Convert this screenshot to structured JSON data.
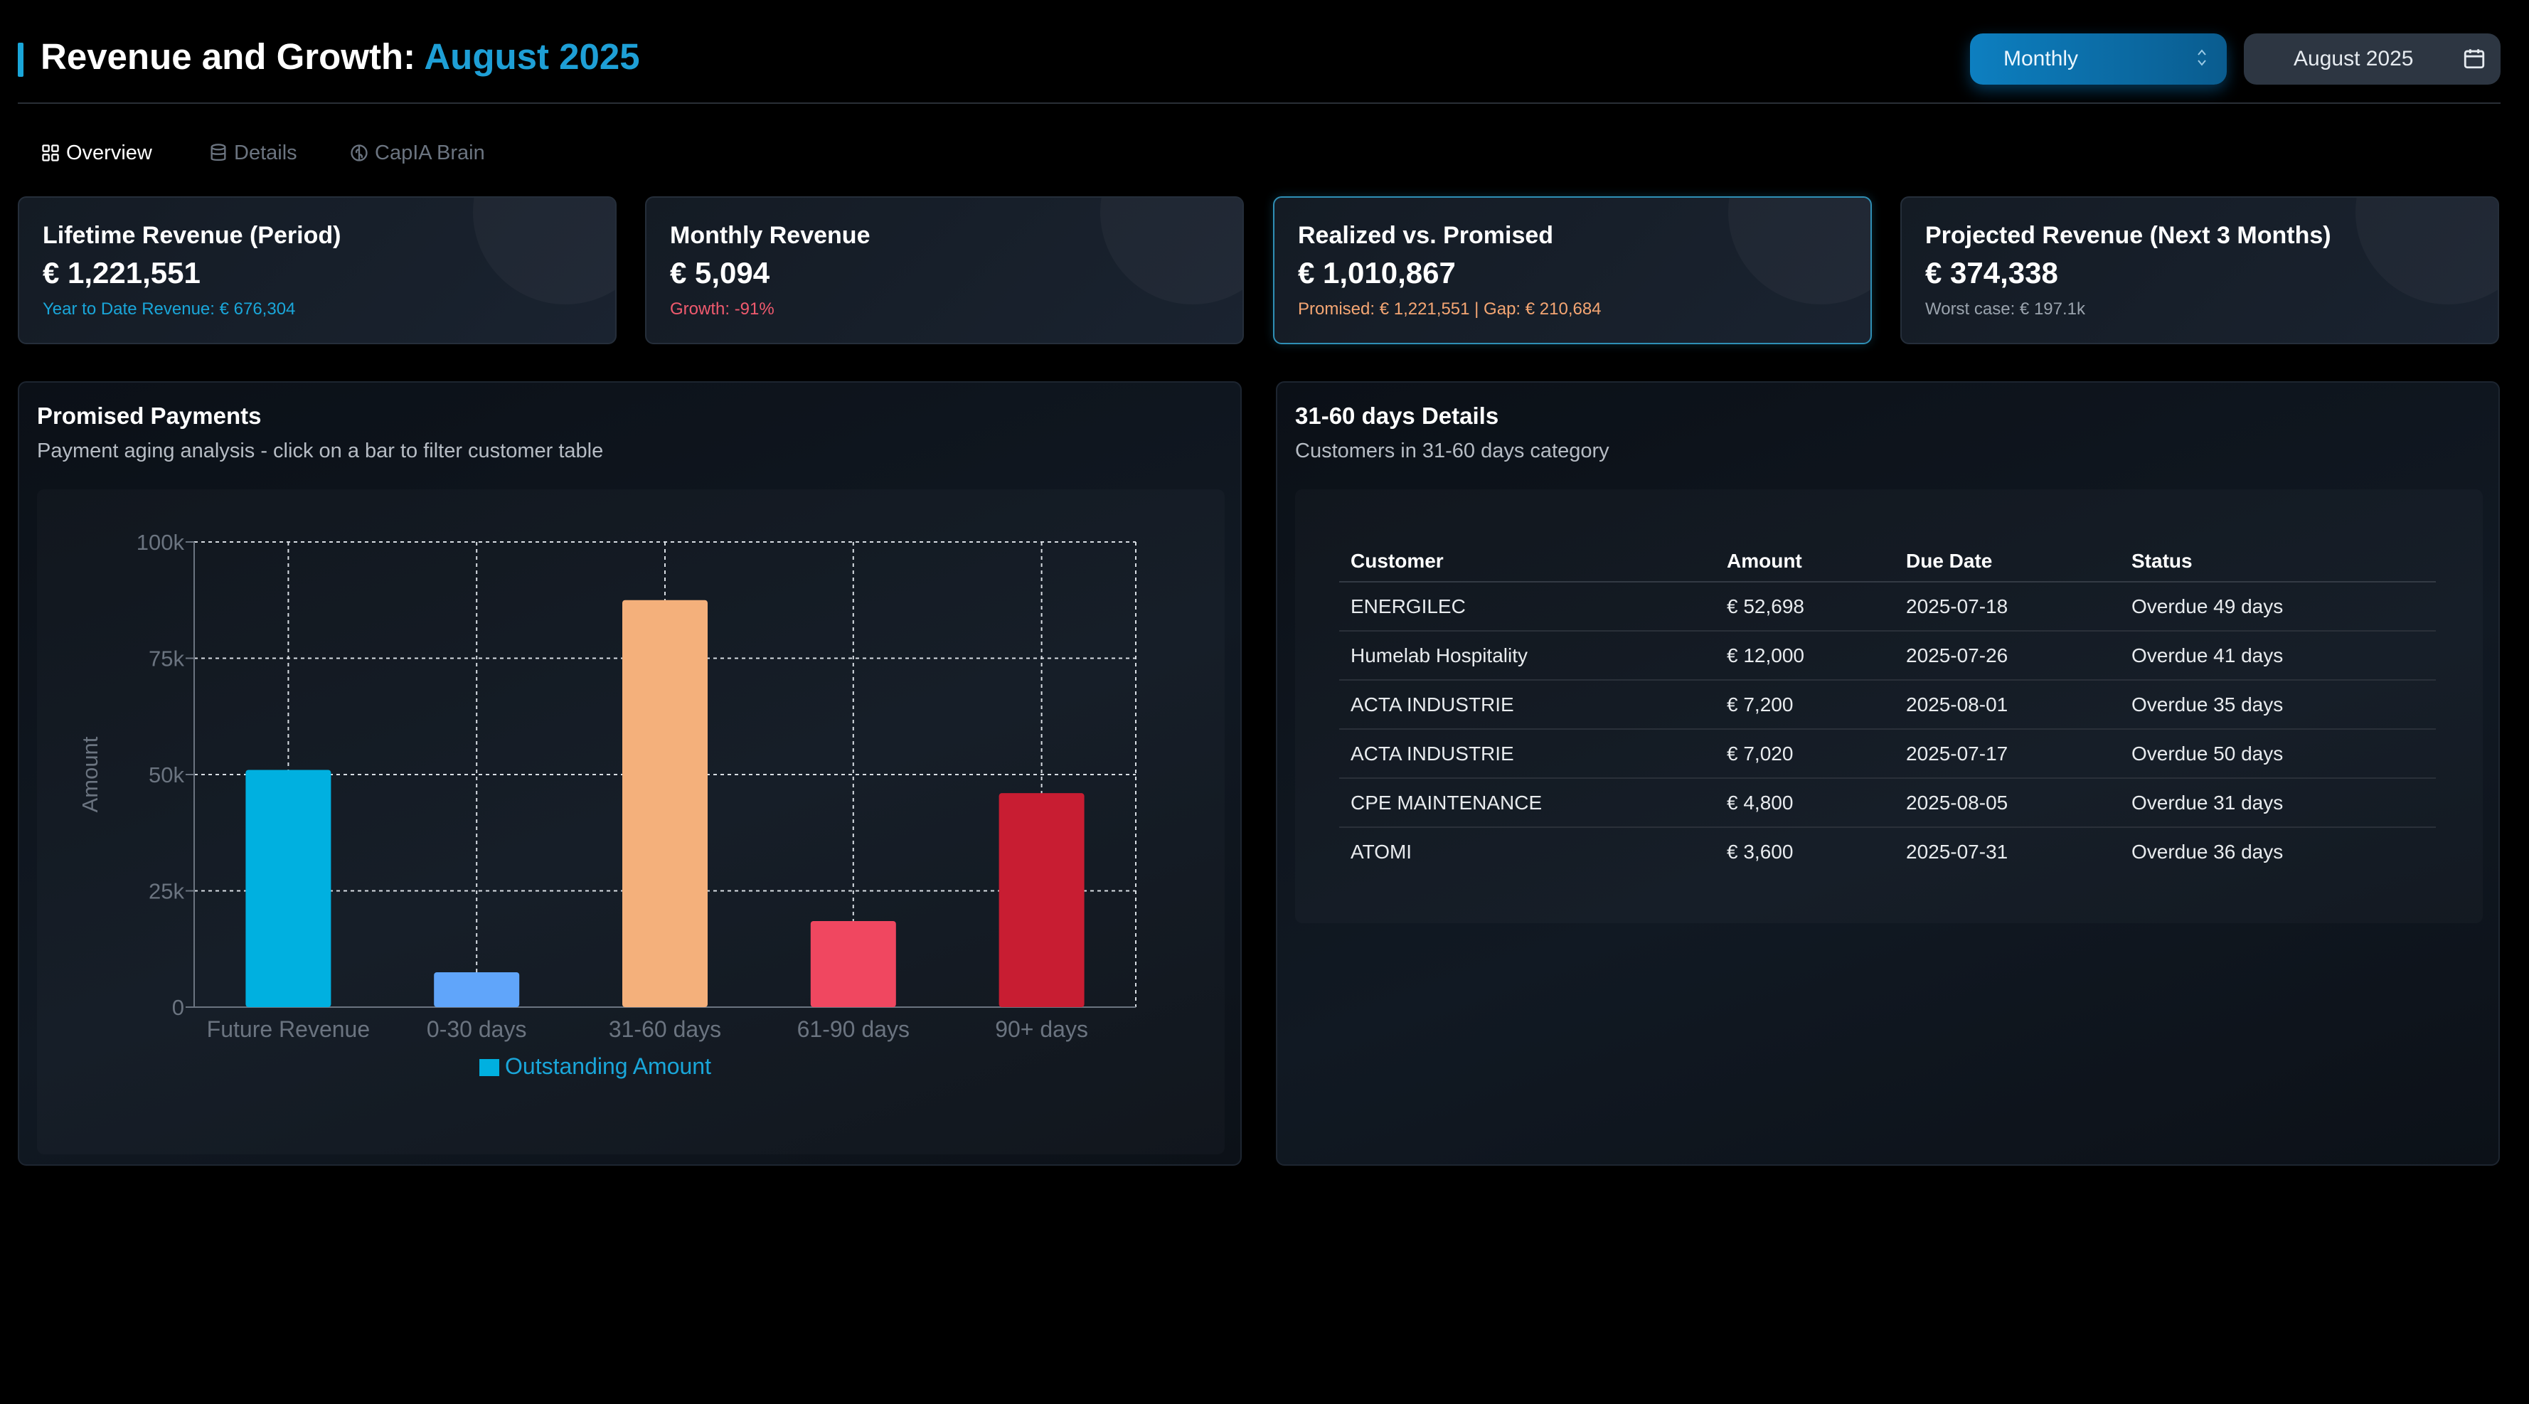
{
  "header": {
    "title_prefix": "Revenue and Growth:",
    "title_period": "August 2025",
    "period_select_value": "Monthly",
    "date_picker_value": "August 2025"
  },
  "tabs": [
    {
      "label": "Overview",
      "icon": "grid-icon",
      "active": true
    },
    {
      "label": "Details",
      "icon": "database-icon",
      "active": false
    },
    {
      "label": "CapIA Brain",
      "icon": "brain-icon",
      "active": false
    }
  ],
  "kpis": [
    {
      "title": "Lifetime Revenue (Period)",
      "value": "€ 1,221,551",
      "sub": "Year to Date Revenue: € 676,304",
      "sub_color": "#1aa6d9"
    },
    {
      "title": "Monthly Revenue",
      "value": "€ 5,094",
      "sub": "Growth: -91%",
      "sub_color": "#f05a6e"
    },
    {
      "title": "Realized vs. Promised",
      "value": "€ 1,010,867",
      "sub": "Promised: € 1,221,551 | Gap: € 210,684",
      "sub_color": "#f5a673"
    },
    {
      "title": "Projected Revenue (Next 3 Months)",
      "value": "€ 374,338",
      "sub": "Worst case: € 197.1k",
      "sub_color": "#9aa3ad"
    }
  ],
  "promised_panel": {
    "title": "Promised Payments",
    "subtitle": "Payment aging analysis - click on a bar to filter customer table"
  },
  "details_panel": {
    "title": "31-60 days Details",
    "subtitle": "Customers in 31-60 days category",
    "columns": [
      "Customer",
      "Amount",
      "Due Date",
      "Status"
    ],
    "rows": [
      [
        "ENERGILEC",
        "€ 52,698",
        "2025-07-18",
        "Overdue 49 days"
      ],
      [
        "Humelab Hospitality",
        "€ 12,000",
        "2025-07-26",
        "Overdue 41 days"
      ],
      [
        "ACTA INDUSTRIE",
        "€ 7,200",
        "2025-08-01",
        "Overdue 35 days"
      ],
      [
        "ACTA INDUSTRIE",
        "€ 7,020",
        "2025-07-17",
        "Overdue 50 days"
      ],
      [
        "CPE MAINTENANCE",
        "€ 4,800",
        "2025-08-05",
        "Overdue 31 days"
      ],
      [
        "ATOMI",
        "€ 3,600",
        "2025-07-31",
        "Overdue 36 days"
      ]
    ]
  },
  "chart_data": {
    "type": "bar",
    "categories": [
      "Future Revenue",
      "0-30 days",
      "31-60 days",
      "61-90 days",
      "90+ days"
    ],
    "values": [
      51000,
      7500,
      87500,
      18500,
      46000
    ],
    "colors": [
      "#00b0e0",
      "#60a5fa",
      "#f4b07b",
      "#f04760",
      "#c81d32"
    ],
    "series": [
      {
        "name": "Outstanding Amount",
        "values": [
          51000,
          7500,
          87500,
          18500,
          46000
        ]
      }
    ],
    "ylabel": "Amount",
    "xlabel": "",
    "ylim": [
      0,
      100000
    ],
    "yticks": [
      0,
      25000,
      50000,
      75000,
      100000
    ],
    "ytick_labels": [
      "0",
      "25k",
      "50k",
      "75k",
      "100k"
    ],
    "legend_color": "#00b0e0",
    "legend_text_color": "#1aa6d9",
    "grid": true,
    "legend_position": "bottom"
  }
}
